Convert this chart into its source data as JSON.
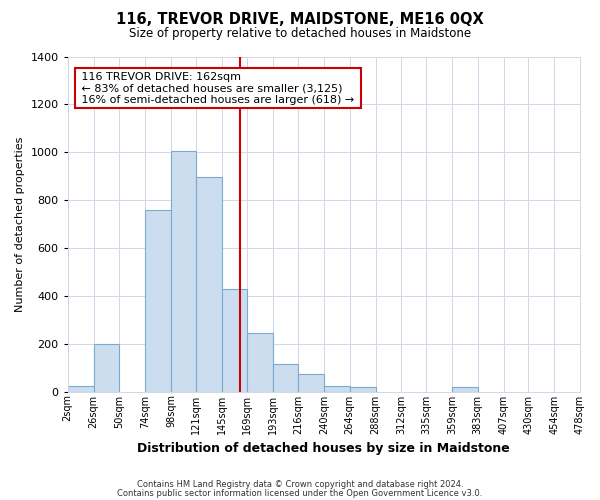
{
  "title": "116, TREVOR DRIVE, MAIDSTONE, ME16 0QX",
  "subtitle": "Size of property relative to detached houses in Maidstone",
  "xlabel": "Distribution of detached houses by size in Maidstone",
  "ylabel": "Number of detached properties",
  "footnote1": "Contains HM Land Registry data © Crown copyright and database right 2024.",
  "footnote2": "Contains public sector information licensed under the Open Government Licence v3.0.",
  "bin_edges": [
    2,
    26,
    50,
    74,
    98,
    121,
    145,
    169,
    193,
    216,
    240,
    264,
    288,
    312,
    335,
    359,
    383,
    407,
    430,
    454,
    478
  ],
  "bin_labels": [
    "2sqm",
    "26sqm",
    "50sqm",
    "74sqm",
    "98sqm",
    "121sqm",
    "145sqm",
    "169sqm",
    "193sqm",
    "216sqm",
    "240sqm",
    "264sqm",
    "288sqm",
    "312sqm",
    "335sqm",
    "359sqm",
    "383sqm",
    "407sqm",
    "430sqm",
    "454sqm",
    "478sqm"
  ],
  "counts": [
    25,
    200,
    0,
    760,
    1005,
    895,
    430,
    245,
    115,
    75,
    25,
    20,
    0,
    0,
    0,
    20,
    0,
    0,
    0,
    0
  ],
  "bar_color": "#ccddf0",
  "bar_edge_color": "#7aaad0",
  "vline_x": 162,
  "vline_color": "#cc0000",
  "annotation_title": "116 TREVOR DRIVE: 162sqm",
  "annotation_line1": "← 83% of detached houses are smaller (3,125)",
  "annotation_line2": "16% of semi-detached houses are larger (618) →",
  "annotation_box_color": "#cc0000",
  "ylim": [
    0,
    1400
  ],
  "yticks": [
    0,
    200,
    400,
    600,
    800,
    1000,
    1200,
    1400
  ],
  "bg_color": "#ffffff",
  "plot_bg_color": "#ffffff",
  "grid_color": "#d0d8e8"
}
